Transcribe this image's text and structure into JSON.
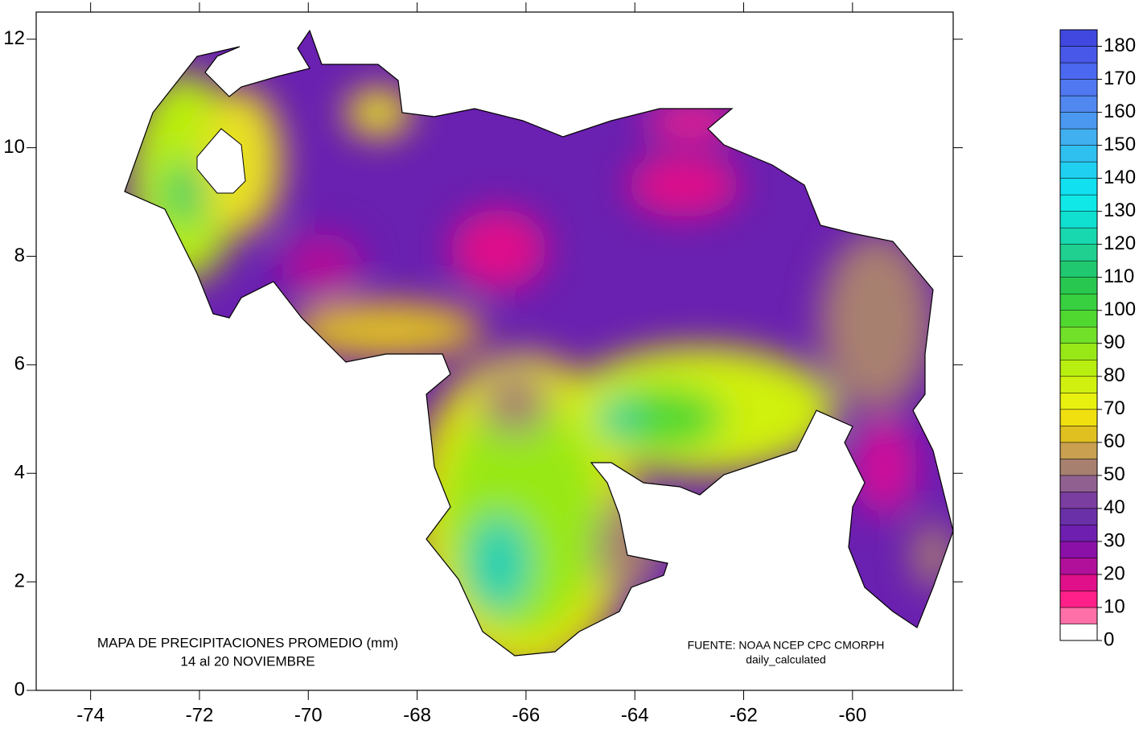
{
  "map": {
    "title": [
      "MAPA DE PRECIPITACIONES PROMEDIO (mm)",
      "14 al 20  NOVIEMBRE"
    ],
    "source": [
      "FUENTE: NOAA NCEP CPC CMORPH",
      "daily_calculated"
    ],
    "xlim": [
      -75,
      -58.15
    ],
    "ylim": [
      0,
      12.5
    ],
    "xticks": [
      -74,
      -72,
      -70,
      -68,
      -66,
      -64,
      -62,
      -60
    ],
    "yticks": [
      0,
      2,
      4,
      6,
      8,
      10,
      12
    ],
    "colorbar": {
      "range": [
        0,
        185
      ],
      "ticks": [
        0,
        10,
        20,
        30,
        40,
        50,
        60,
        70,
        80,
        90,
        100,
        110,
        120,
        130,
        140,
        150,
        160,
        170,
        180
      ],
      "colors": [
        "#ffffff",
        "#ff6fa8",
        "#ff1f88",
        "#e0108a",
        "#b0109a",
        "#8a10a8",
        "#6f1fb0",
        "#6a30a8",
        "#7a3da0",
        "#906090",
        "#a88070",
        "#c8a050",
        "#e0c020",
        "#f0e010",
        "#e8f010",
        "#d0f010",
        "#b8ee10",
        "#98e818",
        "#70e028",
        "#50d830",
        "#38d040",
        "#28c850",
        "#20c870",
        "#20d090",
        "#18d8b0",
        "#10e0d0",
        "#10e8e8",
        "#10e0f0",
        "#20d0f0",
        "#30c0f0",
        "#40b0f0",
        "#4a98f0",
        "#5088f0",
        "#5078f0",
        "#4a68f0",
        "#4858e8",
        "#4048e0"
      ]
    }
  }
}
